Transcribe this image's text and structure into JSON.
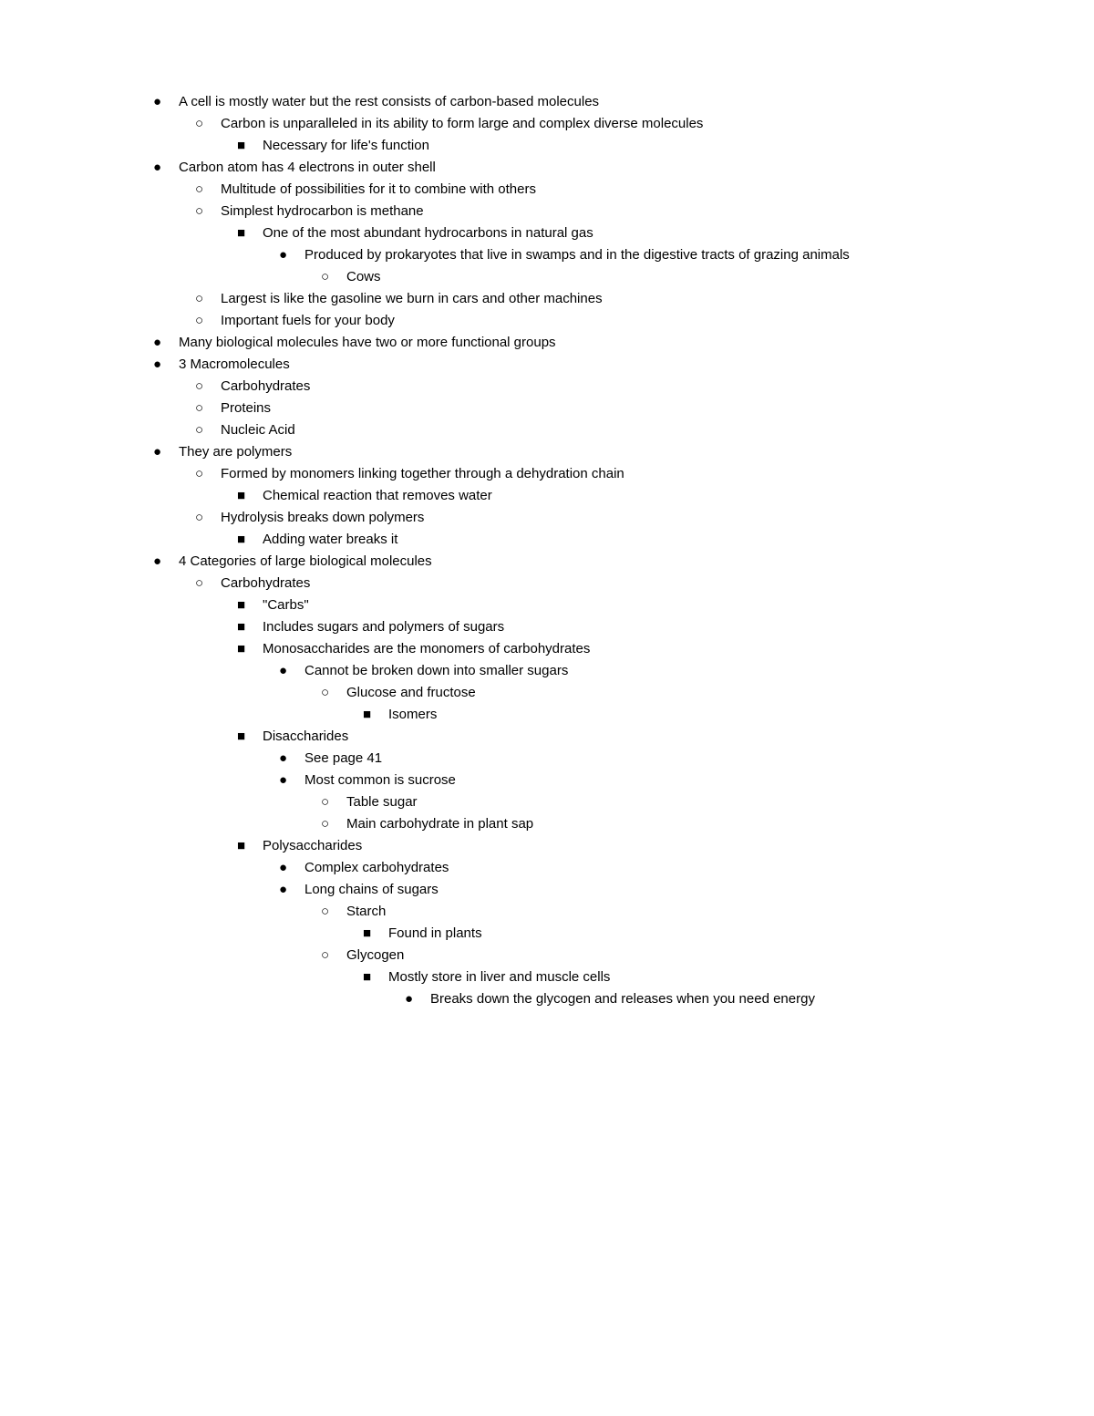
{
  "bullets": {
    "disc": "●",
    "circle": "○",
    "square": "■"
  },
  "outline": [
    {
      "level": 0,
      "bullet": "disc",
      "text": "A cell is mostly water but the rest consists of carbon-based molecules"
    },
    {
      "level": 1,
      "bullet": "circle",
      "text": "Carbon is unparalleled in its ability to form large and complex diverse molecules"
    },
    {
      "level": 2,
      "bullet": "square",
      "text": "Necessary for life's function"
    },
    {
      "level": 0,
      "bullet": "disc",
      "text": "Carbon atom has 4 electrons in outer shell"
    },
    {
      "level": 1,
      "bullet": "circle",
      "text": "Multitude of possibilities for it to combine with others"
    },
    {
      "level": 1,
      "bullet": "circle",
      "text": "Simplest hydrocarbon is methane"
    },
    {
      "level": 2,
      "bullet": "square",
      "text": "One of the most abundant hydrocarbons in natural gas"
    },
    {
      "level": 3,
      "bullet": "disc",
      "text": "Produced by prokaryotes that live in swamps and in the digestive tracts of grazing animals"
    },
    {
      "level": 4,
      "bullet": "circle",
      "text": "Cows"
    },
    {
      "level": 1,
      "bullet": "circle",
      "text": "Largest is like the gasoline we burn in cars and other machines"
    },
    {
      "level": 1,
      "bullet": "circle",
      "text": "Important fuels for your body"
    },
    {
      "level": 0,
      "bullet": "disc",
      "text": "Many biological molecules have two or more functional groups"
    },
    {
      "level": 0,
      "bullet": "disc",
      "text": "3 Macromolecules"
    },
    {
      "level": 1,
      "bullet": "circle",
      "text": "Carbohydrates"
    },
    {
      "level": 1,
      "bullet": "circle",
      "text": "Proteins"
    },
    {
      "level": 1,
      "bullet": "circle",
      "text": "Nucleic Acid"
    },
    {
      "level": 0,
      "bullet": "disc",
      "text": "They are polymers"
    },
    {
      "level": 1,
      "bullet": "circle",
      "text": "Formed by monomers linking together through a dehydration chain"
    },
    {
      "level": 2,
      "bullet": "square",
      "text": "Chemical reaction that removes water"
    },
    {
      "level": 1,
      "bullet": "circle",
      "text": "Hydrolysis breaks down polymers"
    },
    {
      "level": 2,
      "bullet": "square",
      "text": "Adding water breaks it"
    },
    {
      "level": 0,
      "bullet": "disc",
      "text": "4 Categories of large biological molecules"
    },
    {
      "level": 1,
      "bullet": "circle",
      "text": "Carbohydrates"
    },
    {
      "level": 2,
      "bullet": "square",
      "text": "\"Carbs\""
    },
    {
      "level": 2,
      "bullet": "square",
      "text": "Includes sugars and polymers of sugars"
    },
    {
      "level": 2,
      "bullet": "square",
      "text": "Monosaccharides are the monomers of carbohydrates"
    },
    {
      "level": 3,
      "bullet": "disc",
      "text": "Cannot be broken down into smaller sugars"
    },
    {
      "level": 4,
      "bullet": "circle",
      "text": "Glucose and fructose"
    },
    {
      "level": 5,
      "bullet": "square",
      "text": "Isomers"
    },
    {
      "level": 2,
      "bullet": "square",
      "text": "Disaccharides"
    },
    {
      "level": 3,
      "bullet": "disc",
      "text": "See page 41"
    },
    {
      "level": 3,
      "bullet": "disc",
      "text": "Most common is sucrose"
    },
    {
      "level": 4,
      "bullet": "circle",
      "text": "Table sugar"
    },
    {
      "level": 4,
      "bullet": "circle",
      "text": "Main carbohydrate in plant sap"
    },
    {
      "level": 2,
      "bullet": "square",
      "text": "Polysaccharides"
    },
    {
      "level": 3,
      "bullet": "disc",
      "text": "Complex carbohydrates"
    },
    {
      "level": 3,
      "bullet": "disc",
      "text": "Long chains of sugars"
    },
    {
      "level": 4,
      "bullet": "circle",
      "text": "Starch"
    },
    {
      "level": 5,
      "bullet": "square",
      "text": "Found in plants"
    },
    {
      "level": 4,
      "bullet": "circle",
      "text": "Glycogen"
    },
    {
      "level": 5,
      "bullet": "square",
      "text": "Mostly store in liver and muscle cells"
    },
    {
      "level": 6,
      "bullet": "disc",
      "text": "Breaks down the glycogen and releases when you need energy"
    }
  ]
}
